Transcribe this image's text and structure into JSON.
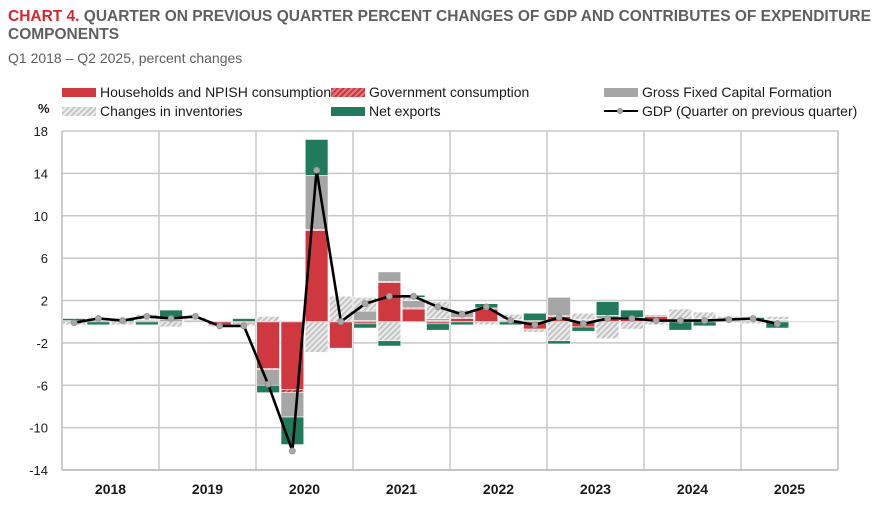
{
  "header": {
    "chart_number": "CHART 4.",
    "title": " QUARTER ON PREVIOUS QUARTER PERCENT CHANGES OF GDP AND CONTRIBUTES OF EXPENDITURE COMPONENTS",
    "subtitle": "Q1 2018 – Q2 2025, percent changes"
  },
  "colors": {
    "households": "#d0383f",
    "government": "#c9383f",
    "gfcf": "#a6a6a6",
    "inventories": "#cfcfcf",
    "net_exports": "#217a5c",
    "gdp_line": "#000000",
    "gdp_marker": "#a9a9a9",
    "title_accent": "#d3262f"
  },
  "chart_data": {
    "type": "bar",
    "stacked": true,
    "title": "QUARTER ON PREVIOUS QUARTER PERCENT CHANGES OF GDP AND CONTRIBUTES OF EXPENDITURE COMPONENTS",
    "subtitle": "Q1 2018 – Q2 2025, percent changes",
    "ylabel": "%",
    "xlabel": "",
    "ylim": [
      -14,
      18
    ],
    "yticks": [
      18,
      14,
      10,
      6,
      2,
      -2,
      -6,
      -10,
      -14
    ],
    "grid": true,
    "legend_position": "top",
    "year_labels": [
      "2018",
      "2019",
      "2020",
      "2021",
      "2022",
      "2023",
      "2024",
      "2025"
    ],
    "quarters_per_year": 4,
    "categories": [
      "Q1 2018",
      "Q2 2018",
      "Q3 2018",
      "Q4 2018",
      "Q1 2019",
      "Q2 2019",
      "Q3 2019",
      "Q4 2019",
      "Q1 2020",
      "Q2 2020",
      "Q3 2020",
      "Q4 2020",
      "Q1 2021",
      "Q2 2021",
      "Q3 2021",
      "Q4 2021",
      "Q1 2022",
      "Q2 2022",
      "Q3 2022",
      "Q4 2022",
      "Q1 2023",
      "Q2 2023",
      "Q3 2023",
      "Q4 2023",
      "Q1 2024",
      "Q2 2024",
      "Q3 2024",
      "Q4 2024",
      "Q1 2025",
      "Q2 2025"
    ],
    "series": [
      {
        "key": "households",
        "name": "Households and NPISH consumption",
        "kind": "bar",
        "values": [
          0.0,
          0.1,
          0.0,
          0.1,
          0.0,
          0.1,
          -0.3,
          -0.1,
          -4.4,
          -6.4,
          8.6,
          -2.5,
          -0.2,
          3.7,
          1.2,
          -0.2,
          0.3,
          1.2,
          0.1,
          -0.7,
          0.5,
          -0.5,
          0.2,
          0.2,
          0.5,
          0.0,
          0.1,
          0.1,
          0.0,
          0.0
        ]
      },
      {
        "key": "government",
        "name": "Government consumption",
        "kind": "bar",
        "values": [
          0.0,
          0.0,
          0.0,
          0.0,
          0.0,
          0.0,
          -0.1,
          -0.1,
          -0.1,
          -0.3,
          0.1,
          0.0,
          0.1,
          0.1,
          0.1,
          0.1,
          0.1,
          0.1,
          0.0,
          0.0,
          0.1,
          0.1,
          0.1,
          0.1,
          0.1,
          0.1,
          0.1,
          0.1,
          0.1,
          0.1
        ]
      },
      {
        "key": "gfcf",
        "name": "Gross Fixed Capital Formation",
        "kind": "bar",
        "values": [
          0.1,
          0.1,
          0.0,
          0.1,
          0.2,
          0.1,
          0.0,
          0.0,
          -1.5,
          -2.3,
          5.1,
          0.0,
          0.9,
          0.9,
          0.7,
          0.2,
          0.5,
          0.0,
          0.1,
          0.1,
          1.7,
          0.1,
          0.3,
          0.1,
          0.0,
          0.1,
          0.1,
          0.1,
          0.1,
          0.1
        ]
      },
      {
        "key": "inventories",
        "name": "Changes in inventories",
        "kind": "bar",
        "values": [
          -0.3,
          0.2,
          -0.3,
          0.5,
          -0.5,
          0.2,
          -0.1,
          -0.2,
          0.5,
          0.1,
          -2.9,
          2.4,
          1.3,
          -1.8,
          0.3,
          1.6,
          0.2,
          -0.3,
          0.5,
          -0.3,
          -1.8,
          0.6,
          -1.6,
          -0.7,
          -0.3,
          1.0,
          0.6,
          0.2,
          -0.2,
          0.3
        ]
      },
      {
        "key": "net_exports",
        "name": "Net exports",
        "kind": "bar",
        "values": [
          0.2,
          -0.3,
          0.3,
          -0.3,
          0.9,
          0.0,
          0.0,
          0.3,
          -0.7,
          -2.6,
          3.4,
          0.0,
          -0.4,
          -0.5,
          0.2,
          -0.6,
          -0.3,
          0.4,
          -0.3,
          0.7,
          -0.3,
          -0.4,
          1.3,
          0.7,
          0.0,
          -0.8,
          -0.4,
          0.0,
          0.2,
          -0.6
        ]
      },
      {
        "key": "gdp",
        "name": "GDP (Quarter on previous quarter)",
        "kind": "line",
        "values": [
          -0.1,
          0.3,
          0.1,
          0.5,
          0.3,
          0.5,
          -0.4,
          -0.4,
          -5.9,
          -12.2,
          14.3,
          0.0,
          1.7,
          2.4,
          2.4,
          1.4,
          0.7,
          1.4,
          0.1,
          -0.3,
          0.4,
          -0.2,
          0.3,
          0.3,
          0.1,
          0.1,
          0.1,
          0.2,
          0.3,
          -0.2
        ]
      }
    ]
  },
  "legend": [
    {
      "key": "households",
      "label": "Households and NPISH consumption"
    },
    {
      "key": "government",
      "label": "Government consumption"
    },
    {
      "key": "gfcf",
      "label": "Gross Fixed Capital Formation"
    },
    {
      "key": "inventories",
      "label": "Changes in inventories"
    },
    {
      "key": "net_exports",
      "label": "Net exports"
    },
    {
      "key": "gdp",
      "label": "GDP (Quarter on previous quarter)"
    }
  ]
}
